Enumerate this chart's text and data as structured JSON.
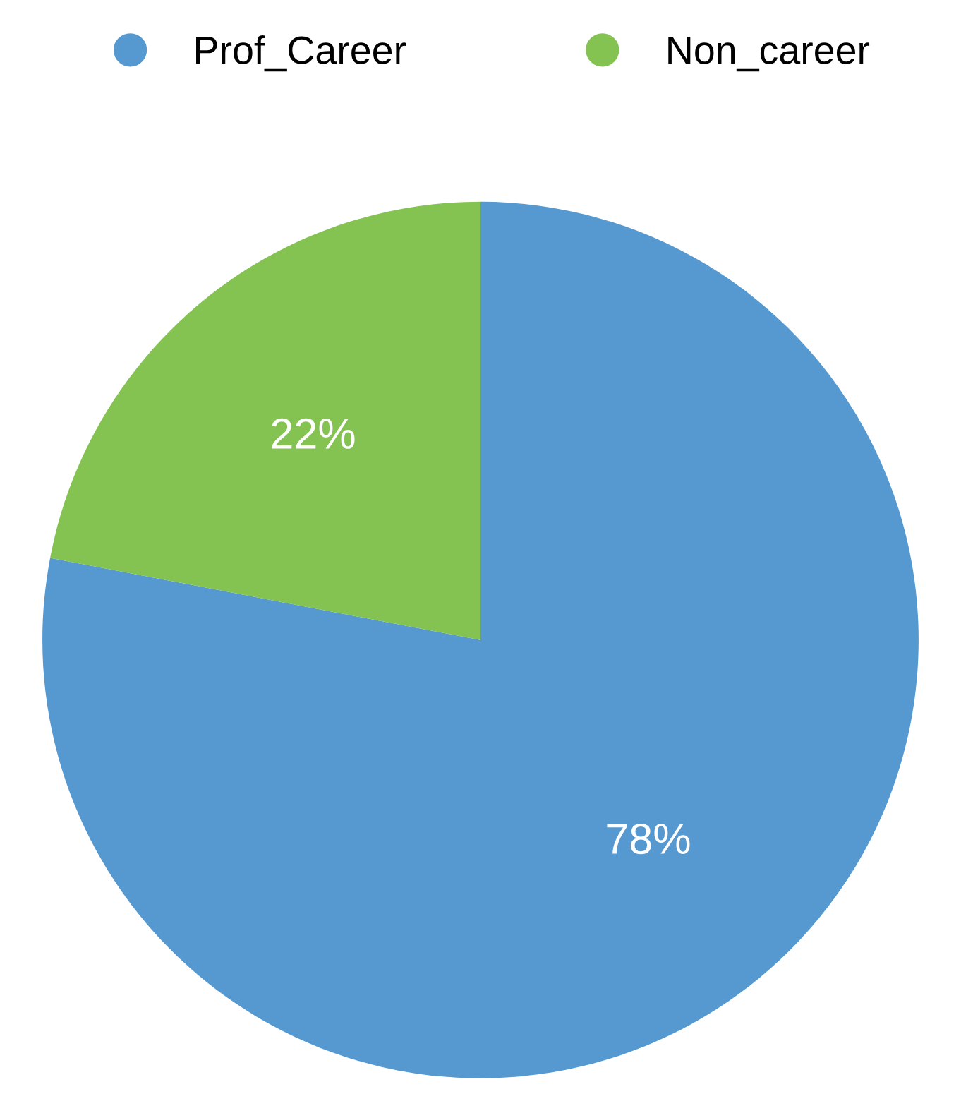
{
  "chart_data": {
    "type": "pie",
    "categories": [
      "Prof_Career",
      "Non_career"
    ],
    "values": [
      78,
      22
    ],
    "colors": [
      "#5599d0",
      "#84c252"
    ],
    "value_labels": [
      "78%",
      "22%"
    ],
    "legend": "top"
  }
}
